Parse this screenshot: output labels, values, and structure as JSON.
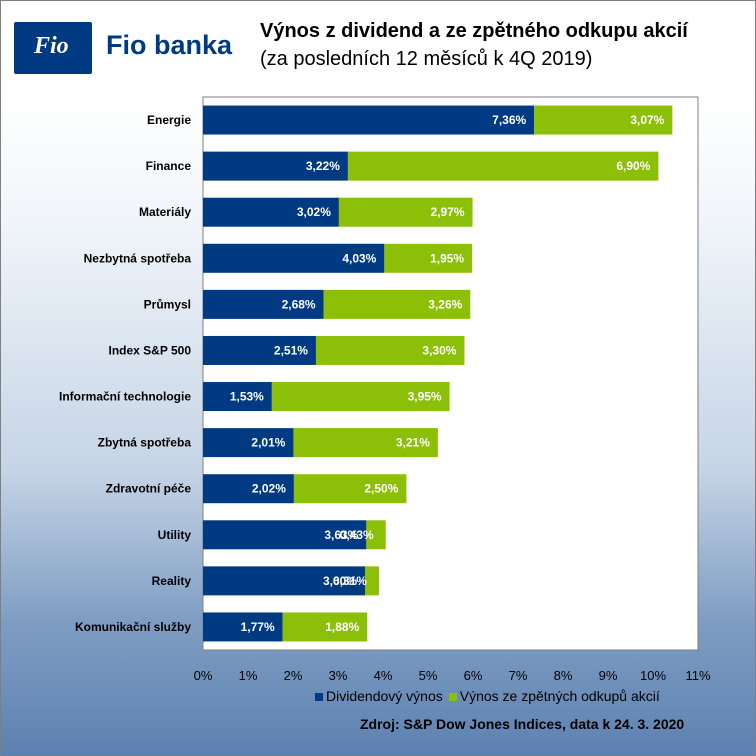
{
  "logo": {
    "badge_text": "Fio",
    "name": "Fio banka",
    "badge_color": "#003a82"
  },
  "header": {
    "title": "Výnos z dividend a ze zpětného odkupu akcií",
    "subtitle": "(za posledních 12 měsíců k 4Q 2019)"
  },
  "chart_data": {
    "type": "bar",
    "orientation": "horizontal",
    "stacked": true,
    "title": "Výnos z dividend a ze zpětného odkupu akcií",
    "subtitle": "(za posledních 12 měsíců k 4Q 2019)",
    "categories": [
      "Energie",
      "Finance",
      "Materiály",
      "Nezbytná spotřeba",
      "Průmysl",
      "Index S&P 500",
      "Informační technologie",
      "Zbytná spotřeba",
      "Zdravotní péče",
      "Utility",
      "Reality",
      "Komunikační služby"
    ],
    "series": [
      {
        "name": "Dividendový výnos",
        "color": "#003a82",
        "values": [
          7.36,
          3.22,
          3.02,
          4.03,
          2.68,
          2.51,
          1.53,
          2.01,
          2.02,
          3.63,
          3.6,
          1.77
        ],
        "labels": [
          "7,36%",
          "3,22%",
          "3,02%",
          "4,03%",
          "2,68%",
          "2,51%",
          "1,53%",
          "2,01%",
          "2,02%",
          "3,63%",
          "3,60%",
          "1,77%"
        ]
      },
      {
        "name": "Výnos ze zpětných odkupů akcií",
        "color": "#8cbf08",
        "values": [
          3.07,
          6.9,
          2.97,
          1.95,
          3.26,
          3.3,
          3.95,
          3.21,
          2.5,
          0.43,
          0.31,
          1.88
        ],
        "labels": [
          "3,07%",
          "6,90%",
          "2,97%",
          "1,95%",
          "3,26%",
          "3,30%",
          "3,95%",
          "3,21%",
          "2,50%",
          "0,43%",
          "0,31%",
          "1,88%"
        ]
      }
    ],
    "xlim": [
      0,
      11
    ],
    "x_ticks": [
      "0%",
      "1%",
      "2%",
      "3%",
      "4%",
      "5%",
      "6%",
      "7%",
      "8%",
      "9%",
      "10%",
      "11%"
    ],
    "grid": false,
    "legend_position": "bottom-right"
  },
  "source": "Zdroj:  S&P Dow Jones Indices, data k 24. 3. 2020"
}
